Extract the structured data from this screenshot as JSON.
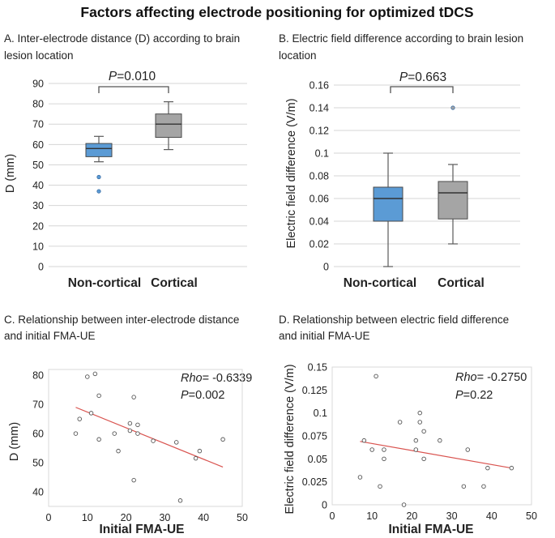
{
  "figure_title": "Factors affecting electrode positioning for optimized tDCS",
  "colors": {
    "non_cortical": "#5B9BD5",
    "cortical": "#A5A5A5",
    "trend": "#D9534F",
    "point": "#555555"
  },
  "chart_data": [
    {
      "id": "A",
      "type": "box",
      "title_lines": [
        "A. Inter-electrode distance (D) according to brain",
        "lesion location"
      ],
      "ylabel": "D (mm)",
      "ylim": [
        0,
        90
      ],
      "yticks": [
        0,
        10,
        20,
        30,
        40,
        50,
        60,
        70,
        80,
        90
      ],
      "grid": true,
      "categories": [
        "Non-cortical",
        "Cortical"
      ],
      "boxes": [
        {
          "name": "Non-cortical",
          "min": 51.5,
          "q1": 54,
          "median": 58,
          "q3": 60.5,
          "max": 64,
          "outliers": [
            44,
            37
          ]
        },
        {
          "name": "Cortical",
          "min": 57.5,
          "q1": 63.5,
          "median": 70,
          "q3": 75,
          "max": 81,
          "outliers": []
        }
      ],
      "p_label": "P",
      "p_value": "=0.010"
    },
    {
      "id": "B",
      "type": "box",
      "title_lines": [
        "B. Electric field difference according to brain lesion",
        "location"
      ],
      "ylabel": "Electric field difference (V/m)",
      "ylim": [
        0,
        0.16
      ],
      "yticks": [
        0,
        0.02,
        0.04,
        0.06,
        0.08,
        0.1,
        0.12,
        0.14,
        0.16
      ],
      "ytick_labels": [
        "0",
        "0.02",
        "0.04",
        "0.06",
        "0.08",
        "0.1",
        "0.12",
        "0.14",
        "0.16"
      ],
      "grid": true,
      "categories": [
        "Non-cortical",
        "Cortical"
      ],
      "boxes": [
        {
          "name": "Non-cortical",
          "min": 0,
          "q1": 0.04,
          "median": 0.06,
          "q3": 0.07,
          "max": 0.1,
          "outliers": []
        },
        {
          "name": "Cortical",
          "min": 0.02,
          "q1": 0.042,
          "median": 0.065,
          "q3": 0.075,
          "max": 0.09,
          "outliers": [
            0.14
          ]
        }
      ],
      "p_label": "P",
      "p_value": "=0.663"
    },
    {
      "id": "C",
      "type": "scatter",
      "title_lines": [
        "C. Relationship between inter-electrode distance",
        "and initial FMA-UE"
      ],
      "xlabel": "Initial FMA-UE",
      "ylabel": "D (mm)",
      "xlim": [
        0,
        50
      ],
      "ylim": [
        35,
        82
      ],
      "xticks": [
        0,
        10,
        20,
        30,
        40,
        50
      ],
      "yticks": [
        40,
        50,
        60,
        70,
        80
      ],
      "ytick_labels": [
        "40",
        "50",
        "60",
        "70",
        "80"
      ],
      "grid": false,
      "points": [
        [
          7,
          60
        ],
        [
          8,
          65
        ],
        [
          10,
          79.5
        ],
        [
          11,
          67
        ],
        [
          12,
          80.5
        ],
        [
          13,
          73
        ],
        [
          13,
          58
        ],
        [
          17,
          60
        ],
        [
          18,
          54
        ],
        [
          21,
          63.5
        ],
        [
          21,
          61
        ],
        [
          22,
          72.5
        ],
        [
          22,
          44
        ],
        [
          23,
          63
        ],
        [
          23,
          60
        ],
        [
          27,
          57.5
        ],
        [
          33,
          57
        ],
        [
          34,
          37
        ],
        [
          38,
          51.5
        ],
        [
          39,
          54
        ],
        [
          45,
          58
        ]
      ],
      "trendline": [
        [
          7,
          69
        ],
        [
          45,
          48.5
        ]
      ],
      "annotation": {
        "rho_label": "Rho",
        "rho_value": "= -0.6339",
        "p_label": "P",
        "p_value": "=0.002"
      }
    },
    {
      "id": "D",
      "type": "scatter",
      "title_lines": [
        "D. Relationship between electric field difference",
        "and initial FMA-UE"
      ],
      "xlabel": "Initial FMA-UE",
      "ylabel": "Electric field difference (V/m)",
      "xlim": [
        0,
        50
      ],
      "ylim": [
        0,
        0.15
      ],
      "xticks": [
        0,
        10,
        20,
        30,
        40,
        50
      ],
      "yticks": [
        0,
        0.025,
        0.05,
        0.075,
        0.1,
        0.125,
        0.15
      ],
      "ytick_labels": [
        "0",
        "0.025",
        "0.05",
        "0.075",
        "0.1",
        "0.125",
        "0.15"
      ],
      "grid": false,
      "points": [
        [
          7,
          0.03
        ],
        [
          8,
          0.07
        ],
        [
          10,
          0.06
        ],
        [
          11,
          0.14
        ],
        [
          12,
          0.02
        ],
        [
          13,
          0.06
        ],
        [
          13,
          0.05
        ],
        [
          17,
          0.09
        ],
        [
          18,
          0
        ],
        [
          21,
          0.07
        ],
        [
          21,
          0.06
        ],
        [
          22,
          0.1
        ],
        [
          22,
          0.09
        ],
        [
          23,
          0.08
        ],
        [
          23,
          0.05
        ],
        [
          27,
          0.07
        ],
        [
          33,
          0.02
        ],
        [
          34,
          0.06
        ],
        [
          38,
          0.02
        ],
        [
          39,
          0.04
        ],
        [
          45,
          0.04
        ]
      ],
      "trendline": [
        [
          7,
          0.069
        ],
        [
          45,
          0.04
        ]
      ],
      "annotation": {
        "rho_label": "Rho",
        "rho_value": "= -0.2750",
        "p_label": "P",
        "p_value": "=0.22"
      }
    }
  ]
}
